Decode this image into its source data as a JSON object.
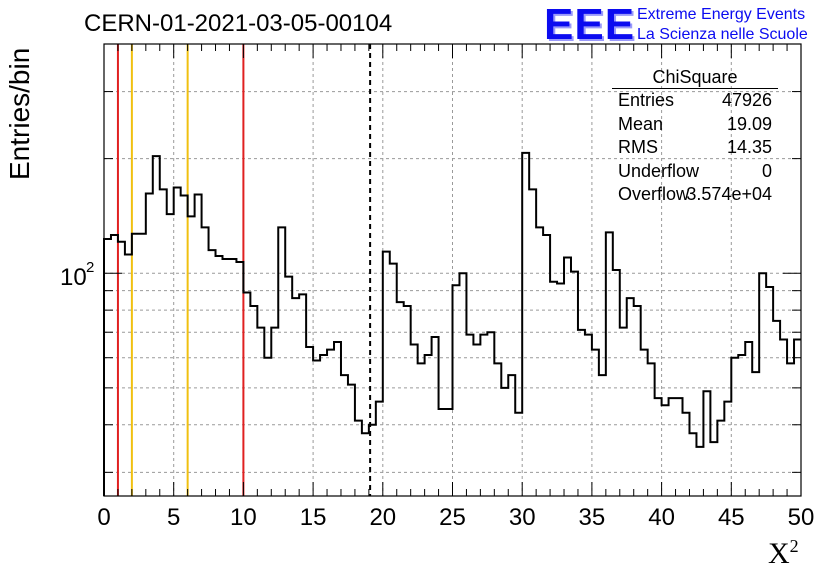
{
  "title": "CERN-01-2021-03-05-00104",
  "logo": {
    "mark": "EEE",
    "line1": "Extreme Energy Events",
    "line2": "La Scienza nelle Scuole",
    "color": "#0b0bf0"
  },
  "stats": {
    "name": "ChiSquare",
    "entries_label": "Entries",
    "entries": "47926",
    "mean_label": "Mean",
    "mean": "19.09",
    "rms_label": "RMS",
    "rms": "14.35",
    "underflow_label": "Underflow",
    "underflow": "0",
    "overflow_label": "Overflow",
    "overflow": "3.574e+04"
  },
  "chart_data": {
    "type": "bar",
    "histogram_style": "step",
    "xlabel": "X",
    "xlabel_sup": "2",
    "ylabel": "Entries/bin",
    "xlim": [
      0,
      50
    ],
    "ylim": [
      26,
      400
    ],
    "yscale": "log",
    "grid": true,
    "bin_width": 0.5,
    "x_ticks": [
      0,
      5,
      10,
      15,
      20,
      25,
      30,
      35,
      40,
      45,
      50
    ],
    "y_tick_label": {
      "base": "10",
      "exp": "2"
    },
    "values": [
      123,
      126,
      121,
      112,
      127,
      127,
      162,
      203,
      166,
      143,
      168,
      160,
      141,
      161,
      132,
      115,
      111,
      109,
      109,
      107,
      89,
      82,
      72,
      60,
      72,
      132,
      98,
      86,
      88,
      64,
      59,
      61,
      63,
      66,
      54,
      51,
      41,
      38,
      40,
      46,
      114,
      106,
      84,
      82,
      65,
      58,
      61,
      68,
      44,
      44,
      93,
      100,
      69,
      65,
      69,
      70,
      58,
      50,
      54,
      43,
      207,
      166,
      132,
      126,
      95,
      94,
      110,
      101,
      71,
      69,
      63,
      54,
      128,
      102,
      72,
      86,
      82,
      63,
      58,
      47,
      45,
      47,
      47,
      43,
      38,
      35,
      49,
      36,
      41,
      46,
      60,
      61,
      66,
      55,
      100,
      92,
      75,
      67,
      58,
      67
    ],
    "vertical_lines": [
      {
        "x": 1,
        "color": "#e02020",
        "style": "solid"
      },
      {
        "x": 2,
        "color": "#f0c010",
        "style": "solid"
      },
      {
        "x": 6,
        "color": "#f0c010",
        "style": "solid"
      },
      {
        "x": 10,
        "color": "#e02020",
        "style": "solid"
      },
      {
        "x": 19.09,
        "color": "#000000",
        "style": "dashed"
      }
    ]
  }
}
